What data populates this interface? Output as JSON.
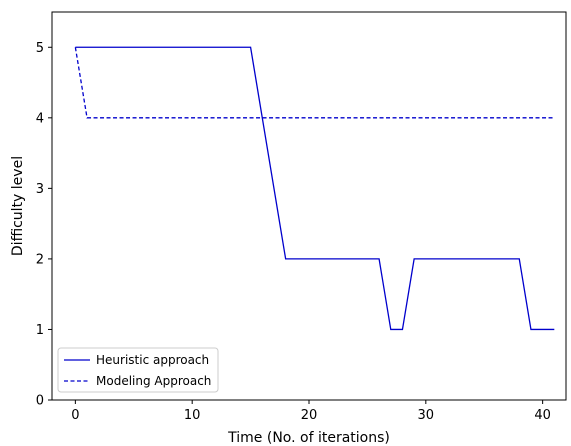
{
  "chart_data": {
    "type": "line",
    "xlabel": "Time (No. of iterations)",
    "ylabel": "Difficulty level",
    "xlim": [
      -2,
      42
    ],
    "ylim": [
      0,
      5.5
    ],
    "x_ticks": [
      0,
      10,
      20,
      30,
      40
    ],
    "y_ticks": [
      0,
      1,
      2,
      3,
      4,
      5
    ],
    "grid": false,
    "legend_position": "lower-left",
    "series": [
      {
        "name": "Heuristic approach",
        "line_style": "solid",
        "color": "#0000cc",
        "x": [
          0,
          15,
          18,
          26,
          27,
          28,
          29,
          38,
          39,
          41
        ],
        "y": [
          5,
          5,
          2,
          2,
          1,
          1,
          2,
          2,
          1,
          1
        ]
      },
      {
        "name": "Modeling Approach",
        "line_style": "dashed",
        "color": "#0000cc",
        "x": [
          0,
          1,
          41
        ],
        "y": [
          5,
          4,
          4
        ]
      }
    ]
  }
}
